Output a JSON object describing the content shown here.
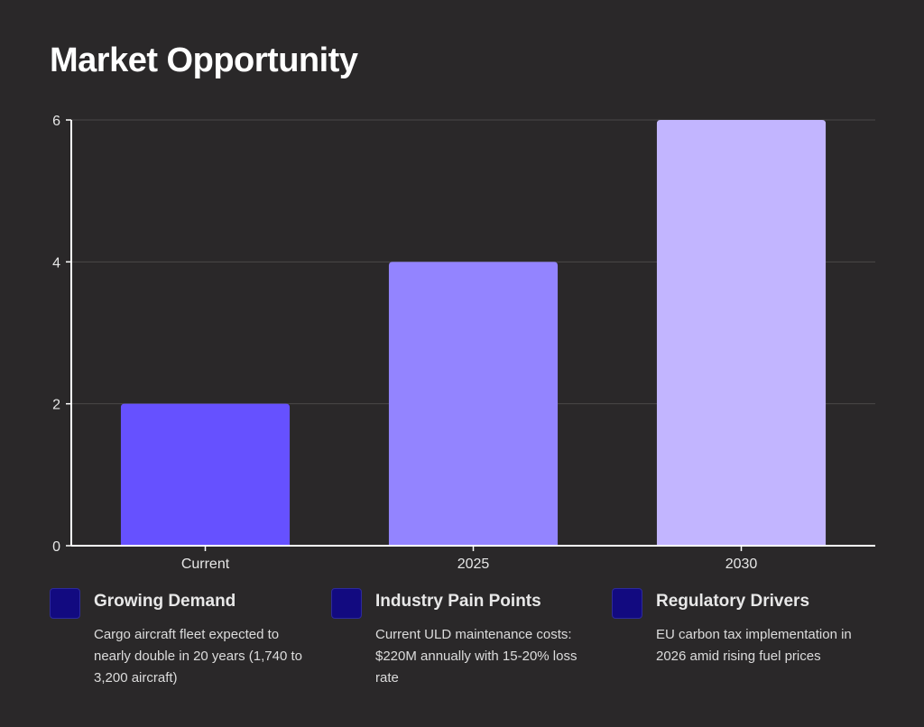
{
  "title": "Market Opportunity",
  "chart_data": {
    "type": "bar",
    "categories": [
      "Current",
      "2025",
      "2030"
    ],
    "values": [
      2,
      4,
      6
    ],
    "ylim": [
      0,
      6
    ],
    "yticks": [
      0,
      2,
      4,
      6
    ],
    "grid": true,
    "bar_colors": [
      "#6651ff",
      "#9384ff",
      "#c2b5ff"
    ],
    "title": "",
    "xlabel": "",
    "ylabel": ""
  },
  "cards": [
    {
      "title": "Growing Demand",
      "text": "Cargo aircraft fleet expected to nearly double in 20 years (1,740 to 3,200 aircraft)"
    },
    {
      "title": "Industry Pain Points",
      "text": "Current ULD maintenance costs: $220M annually with 15-20% loss rate"
    },
    {
      "title": "Regulatory Drivers",
      "text": "EU carbon tax implementation in 2026 amid rising fuel prices"
    }
  ],
  "colors": {
    "background": "#2a2829",
    "swatch": "#120a80",
    "gridline": "#4a4849",
    "axis": "#ffffff"
  }
}
